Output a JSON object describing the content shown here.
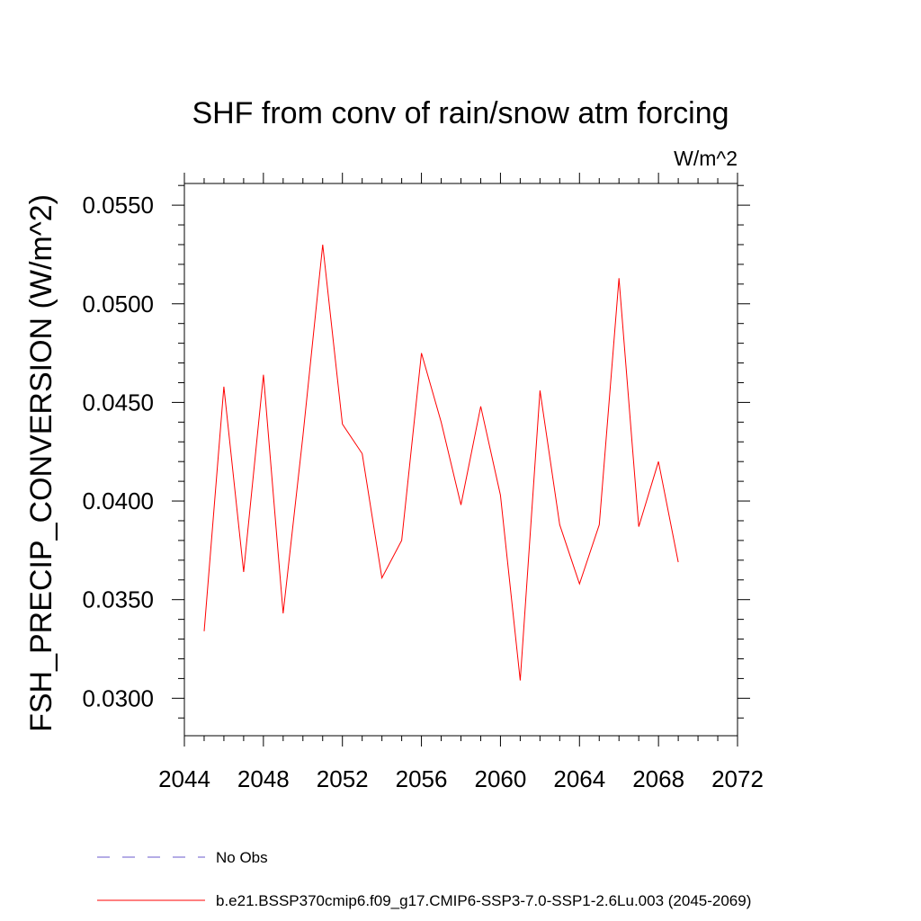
{
  "chart_data": {
    "type": "line",
    "title": "SHF from conv of rain/snow atm forcing",
    "units": "W/m^2",
    "ylabel": "FSH_PRECIP_CONVERSION  (W/m^2)",
    "xlabel": "",
    "xlim": [
      2044,
      2072
    ],
    "ylim": [
      0.0281,
      0.0561
    ],
    "x_ticks": [
      2044,
      2048,
      2052,
      2056,
      2060,
      2064,
      2068,
      2072
    ],
    "x_tick_labels": [
      "2044",
      "2048",
      "2052",
      "2056",
      "2060",
      "2064",
      "2068",
      "2072"
    ],
    "y_ticks": [
      0.03,
      0.035,
      0.04,
      0.045,
      0.05,
      0.055
    ],
    "y_tick_labels": [
      "0.0300",
      "0.0350",
      "0.0400",
      "0.0450",
      "0.0500",
      "0.0550"
    ],
    "grid": false,
    "legend_position": "bottom",
    "series": [
      {
        "name": "b.e21.BSSP370cmip6.f09_g17.CMIP6-SSP3-7.0-SSP1-2.6Lu.003 (2045-2069)",
        "color": "#ff0000",
        "style": "solid",
        "x": [
          2045,
          2046,
          2047,
          2048,
          2049,
          2050,
          2051,
          2052,
          2053,
          2054,
          2055,
          2056,
          2057,
          2058,
          2059,
          2060,
          2061,
          2062,
          2063,
          2064,
          2065,
          2066,
          2067,
          2068,
          2069
        ],
        "values": [
          0.0334,
          0.0458,
          0.0364,
          0.0464,
          0.0343,
          0.0433,
          0.053,
          0.0439,
          0.0424,
          0.0361,
          0.038,
          0.0475,
          0.044,
          0.0398,
          0.0448,
          0.0403,
          0.0309,
          0.0456,
          0.0388,
          0.0358,
          0.0388,
          0.0513,
          0.0387,
          0.042,
          0.0369
        ]
      },
      {
        "name": "No Obs",
        "color": "#6a5acd",
        "style": "dashed",
        "x": [],
        "values": []
      }
    ]
  }
}
